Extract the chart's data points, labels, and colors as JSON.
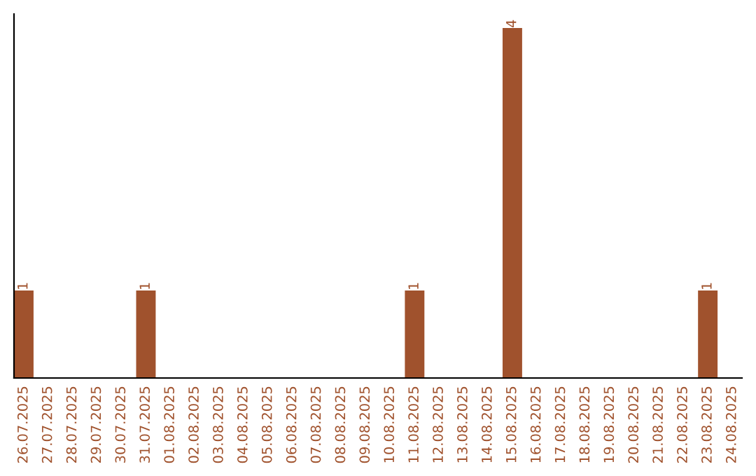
{
  "chart_data": {
    "type": "bar",
    "categories": [
      "26.07.2025",
      "27.07.2025",
      "28.07.2025",
      "29.07.2025",
      "30.07.2025",
      "31.07.2025",
      "01.08.2025",
      "02.08.2025",
      "03.08.2025",
      "04.08.2025",
      "05.08.2025",
      "06.08.2025",
      "07.08.2025",
      "08.08.2025",
      "09.08.2025",
      "10.08.2025",
      "11.08.2025",
      "12.08.2025",
      "13.08.2025",
      "14.08.2025",
      "15.08.2025",
      "16.08.2025",
      "17.08.2025",
      "18.08.2025",
      "19.08.2025",
      "20.08.2025",
      "21.08.2025",
      "22.08.2025",
      "23.08.2025",
      "24.08.2025"
    ],
    "values": [
      1,
      0,
      0,
      0,
      0,
      1,
      0,
      0,
      0,
      0,
      0,
      0,
      0,
      0,
      0,
      0,
      1,
      0,
      0,
      0,
      4,
      0,
      0,
      0,
      0,
      0,
      0,
      0,
      1,
      0
    ],
    "value_labels": [
      "1",
      null,
      null,
      null,
      null,
      "1",
      null,
      null,
      null,
      null,
      null,
      null,
      null,
      null,
      null,
      null,
      "1",
      null,
      null,
      null,
      "4",
      null,
      null,
      null,
      null,
      null,
      null,
      null,
      "1",
      null
    ],
    "color": "#a0522d",
    "grid": false,
    "legend": false
  }
}
